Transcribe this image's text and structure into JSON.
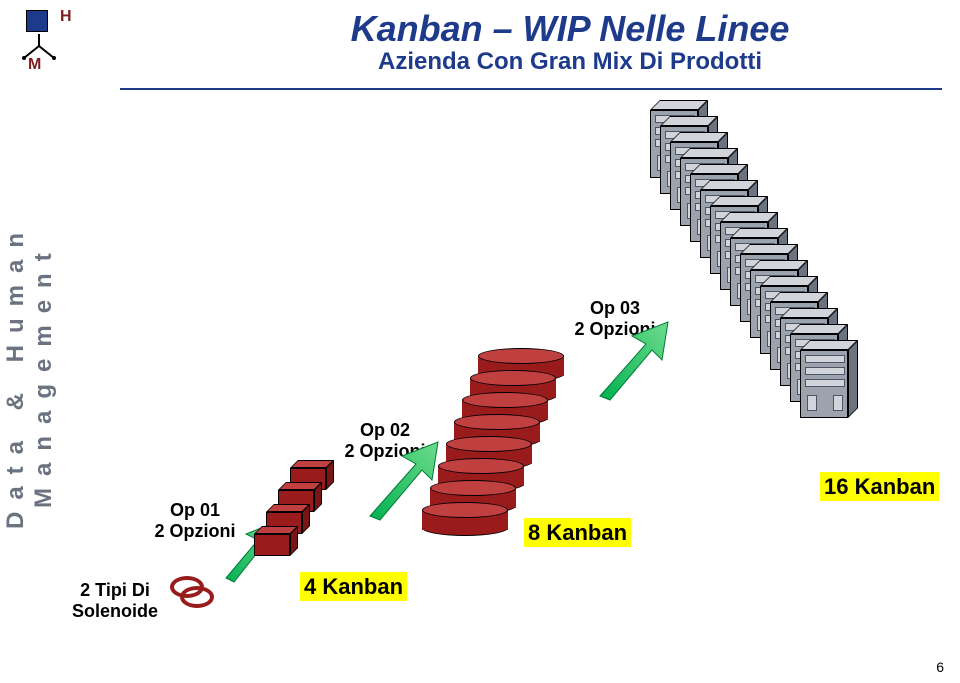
{
  "logo": {
    "h": "H",
    "m": "M"
  },
  "title": "Kanban – WIP Nelle Linee",
  "subtitle": "Azienda Con Gran Mix Di Prodotti",
  "sidebar": "Data & Human Management",
  "page_number": "6",
  "diagram": {
    "start_label": "2 Tipi Di\nSolenoide",
    "op01": {
      "name": "Op 01",
      "opts": "2 Opzioni"
    },
    "op02": {
      "name": "Op 02",
      "opts": "2 Opzioni"
    },
    "op03": {
      "name": "Op 03",
      "opts": "2 Opzioni"
    },
    "kanban4": "4 Kanban",
    "kanban8": "8 Kanban",
    "kanban16": "16 Kanban",
    "colors": {
      "solenoid_stroke": "#991b1b",
      "box_fill": "#991b1b",
      "barrel_fill": "#991b1b",
      "cabinet_fill": "#9ca3af",
      "arrow_fill": "#00b050",
      "highlight": "#ffff00",
      "title_color": "#1e3a8a"
    },
    "counts": {
      "boxes": 4,
      "barrels": 8,
      "cabinets": 16
    },
    "fonts": {
      "title_pt": 36,
      "subtitle_pt": 24,
      "label_pt": 18,
      "op_pt": 18,
      "kanban_pt": 22
    }
  }
}
